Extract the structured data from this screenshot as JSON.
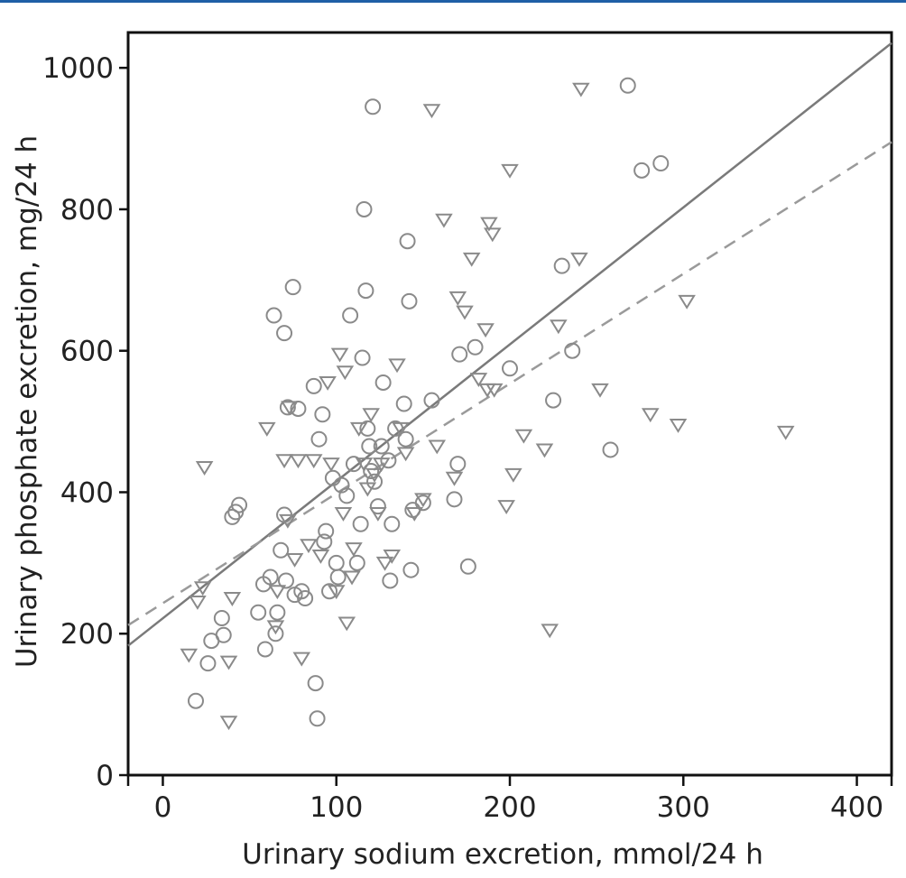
{
  "chart_data": {
    "type": "scatter",
    "title": "",
    "xlabel": "Urinary sodium excretion, mmol/24 h",
    "ylabel": "Urinary phosphate excretion, mg/24 h",
    "xlim": [
      -20,
      420
    ],
    "ylim": [
      0,
      1050
    ],
    "xticks": [
      "0",
      "100",
      "200",
      "300",
      "400"
    ],
    "yticks": [
      "0",
      "200",
      "400",
      "600",
      "800",
      "1000"
    ],
    "grid": false,
    "legend": "none",
    "colors": {
      "marker": "#8a8a8a",
      "solid_line": "#7a7a7a",
      "dashed_line": "#9a9a9a",
      "axis": "#111111",
      "accent_bar": "#1f5fa6"
    },
    "series": [
      {
        "marker": "circle",
        "points": [
          [
            19,
            105
          ],
          [
            26,
            158
          ],
          [
            28,
            190
          ],
          [
            34,
            222
          ],
          [
            35,
            198
          ],
          [
            40,
            365
          ],
          [
            42,
            372
          ],
          [
            44,
            382
          ],
          [
            55,
            230
          ],
          [
            58,
            270
          ],
          [
            59,
            178
          ],
          [
            62,
            280
          ],
          [
            64,
            650
          ],
          [
            65,
            200
          ],
          [
            66,
            230
          ],
          [
            68,
            318
          ],
          [
            70,
            625
          ],
          [
            70,
            368
          ],
          [
            71,
            275
          ],
          [
            72,
            520
          ],
          [
            75,
            690
          ],
          [
            76,
            255
          ],
          [
            78,
            518
          ],
          [
            80,
            260
          ],
          [
            82,
            250
          ],
          [
            87,
            550
          ],
          [
            88,
            130
          ],
          [
            89,
            80
          ],
          [
            90,
            475
          ],
          [
            92,
            510
          ],
          [
            93,
            330
          ],
          [
            94,
            345
          ],
          [
            96,
            260
          ],
          [
            98,
            420
          ],
          [
            100,
            300
          ],
          [
            101,
            280
          ],
          [
            103,
            410
          ],
          [
            106,
            395
          ],
          [
            108,
            650
          ],
          [
            110,
            440
          ],
          [
            112,
            300
          ],
          [
            114,
            355
          ],
          [
            115,
            590
          ],
          [
            116,
            800
          ],
          [
            117,
            685
          ],
          [
            118,
            490
          ],
          [
            119,
            465
          ],
          [
            120,
            430
          ],
          [
            121,
            945
          ],
          [
            122,
            415
          ],
          [
            124,
            380
          ],
          [
            126,
            465
          ],
          [
            127,
            555
          ],
          [
            130,
            445
          ],
          [
            131,
            275
          ],
          [
            132,
            355
          ],
          [
            134,
            490
          ],
          [
            139,
            525
          ],
          [
            140,
            475
          ],
          [
            141,
            755
          ],
          [
            142,
            670
          ],
          [
            143,
            290
          ],
          [
            144,
            375
          ],
          [
            150,
            385
          ],
          [
            155,
            530
          ],
          [
            168,
            390
          ],
          [
            170,
            440
          ],
          [
            171,
            595
          ],
          [
            176,
            295
          ],
          [
            180,
            605
          ],
          [
            200,
            575
          ],
          [
            225,
            530
          ],
          [
            230,
            720
          ],
          [
            236,
            600
          ],
          [
            258,
            460
          ],
          [
            268,
            975
          ],
          [
            276,
            855
          ],
          [
            287,
            865
          ]
        ]
      },
      {
        "marker": "triangle-down",
        "points": [
          [
            15,
            170
          ],
          [
            20,
            245
          ],
          [
            23,
            265
          ],
          [
            24,
            435
          ],
          [
            38,
            75
          ],
          [
            38,
            160
          ],
          [
            40,
            250
          ],
          [
            60,
            490
          ],
          [
            65,
            210
          ],
          [
            66,
            260
          ],
          [
            70,
            445
          ],
          [
            72,
            360
          ],
          [
            73,
            520
          ],
          [
            76,
            305
          ],
          [
            78,
            445
          ],
          [
            80,
            165
          ],
          [
            84,
            325
          ],
          [
            87,
            445
          ],
          [
            91,
            310
          ],
          [
            95,
            555
          ],
          [
            97,
            440
          ],
          [
            100,
            260
          ],
          [
            102,
            595
          ],
          [
            104,
            370
          ],
          [
            105,
            570
          ],
          [
            106,
            215
          ],
          [
            109,
            280
          ],
          [
            110,
            320
          ],
          [
            113,
            490
          ],
          [
            116,
            440
          ],
          [
            118,
            405
          ],
          [
            120,
            510
          ],
          [
            122,
            425
          ],
          [
            124,
            370
          ],
          [
            126,
            440
          ],
          [
            128,
            300
          ],
          [
            132,
            310
          ],
          [
            135,
            580
          ],
          [
            137,
            490
          ],
          [
            140,
            455
          ],
          [
            145,
            370
          ],
          [
            150,
            390
          ],
          [
            155,
            940
          ],
          [
            158,
            465
          ],
          [
            162,
            785
          ],
          [
            168,
            420
          ],
          [
            170,
            675
          ],
          [
            174,
            655
          ],
          [
            178,
            730
          ],
          [
            182,
            560
          ],
          [
            186,
            630
          ],
          [
            187,
            545
          ],
          [
            188,
            780
          ],
          [
            190,
            765
          ],
          [
            191,
            545
          ],
          [
            198,
            380
          ],
          [
            200,
            855
          ],
          [
            202,
            425
          ],
          [
            208,
            480
          ],
          [
            220,
            460
          ],
          [
            223,
            205
          ],
          [
            228,
            635
          ],
          [
            240,
            730
          ],
          [
            241,
            970
          ],
          [
            252,
            545
          ],
          [
            281,
            510
          ],
          [
            297,
            495
          ],
          [
            302,
            670
          ],
          [
            359,
            485
          ]
        ]
      }
    ],
    "fit_lines": [
      {
        "style": "solid",
        "x": [
          -20,
          420
        ],
        "y": [
          183,
          1035
        ]
      },
      {
        "style": "dashed",
        "x": [
          -20,
          420
        ],
        "y": [
          212,
          895
        ]
      }
    ]
  }
}
